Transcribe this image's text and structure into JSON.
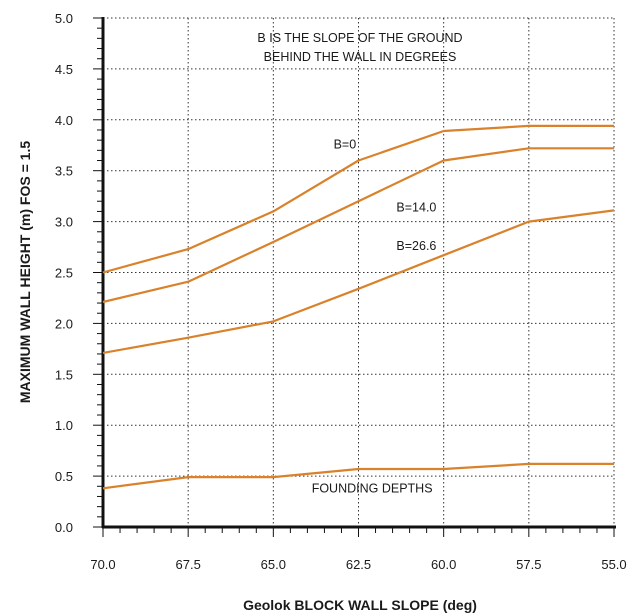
{
  "chart_data": {
    "type": "line",
    "title": "",
    "annotation_lines": [
      "B  IS THE SLOPE OF THE GROUND",
      "BEHIND THE WALL IN DEGREES"
    ],
    "xlabel": "Geolok BLOCK WALL SLOPE (deg)",
    "ylabel": "MAXIMUM WALL HEIGHT (m) FOS = 1.5",
    "x": [
      70.0,
      67.5,
      65.0,
      62.5,
      60.0,
      57.5,
      55.0
    ],
    "x_tick_labels": [
      "70.0",
      "67.5",
      "65.0",
      "62.5",
      "60.0",
      "57.5",
      "55.0"
    ],
    "xlim": [
      70.0,
      55.0
    ],
    "x_reversed": true,
    "ylim": [
      0.0,
      5.0
    ],
    "y_ticks": [
      0.0,
      0.5,
      1.0,
      1.5,
      2.0,
      2.5,
      3.0,
      3.5,
      4.0,
      4.5,
      5.0
    ],
    "y_tick_labels": [
      "0.0",
      "0.5",
      "1.0",
      "1.5",
      "2.0",
      "2.5",
      "3.0",
      "3.5",
      "4.0",
      "4.5",
      "5.0"
    ],
    "grid": true,
    "line_color": "#d9822b",
    "series": [
      {
        "name": "B=0",
        "values": [
          2.5,
          2.73,
          3.1,
          3.6,
          3.89,
          3.94,
          3.94
        ]
      },
      {
        "name": "B=14.0",
        "values": [
          2.21,
          2.41,
          2.8,
          3.2,
          3.6,
          3.72,
          3.72
        ]
      },
      {
        "name": "B=26.6",
        "values": [
          1.71,
          1.86,
          2.02,
          2.34,
          2.67,
          3.0,
          3.11
        ]
      },
      {
        "name": "FOUNDING DEPTHS",
        "values": [
          0.38,
          0.49,
          0.49,
          0.57,
          0.57,
          0.62,
          0.62
        ]
      }
    ]
  }
}
